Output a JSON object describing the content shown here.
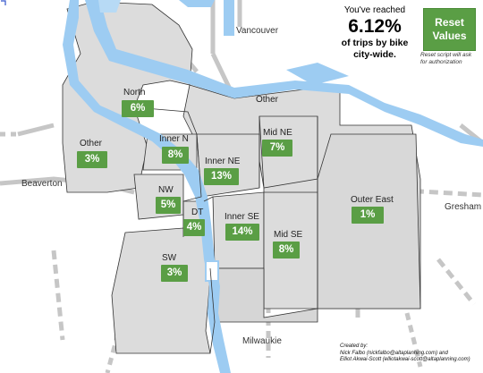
{
  "summary": {
    "line1": "You've reached",
    "percent": "6.12%",
    "line2": "of trips by bike",
    "line3": "city-wide."
  },
  "reset": {
    "label_line1": "Reset",
    "label_line2": "Values",
    "note_line1": "Reset script will ask",
    "note_line2": "for authorization"
  },
  "cities": {
    "vancouver": "Vancouver",
    "beaverton": "Beaverton",
    "gresham": "Gresham",
    "milwaukie": "Milwaukie"
  },
  "zones": {
    "north": {
      "name": "North",
      "value": "6%"
    },
    "other_west": {
      "name": "Other",
      "value": "3%"
    },
    "other_north": {
      "name": "Other"
    },
    "inner_n": {
      "name": "Inner N",
      "value": "8%"
    },
    "mid_ne": {
      "name": "Mid NE",
      "value": "7%"
    },
    "inner_ne": {
      "name": "Inner NE",
      "value": "13%"
    },
    "nw": {
      "name": "NW",
      "value": "5%"
    },
    "dt": {
      "name": "DT",
      "value": "4%"
    },
    "inner_se": {
      "name": "Inner SE",
      "value": "14%"
    },
    "mid_se": {
      "name": "Mid SE",
      "value": "8%"
    },
    "outer_east": {
      "name": "Outer East",
      "value": "1%"
    },
    "sw": {
      "name": "SW",
      "value": "3%"
    }
  },
  "credits": {
    "line1": "Created by:",
    "line2": "Nick Falbo (nickfalbo@altaplanning.com) and",
    "line3": "Elliot Akwai-Scott (elliotakwai-scott@altaplanning.com)"
  },
  "colors": {
    "water": "#9dccf2",
    "zone_fill": "#dcdcdc",
    "road": "#c4c4c4",
    "badge": "#5a9e45"
  }
}
